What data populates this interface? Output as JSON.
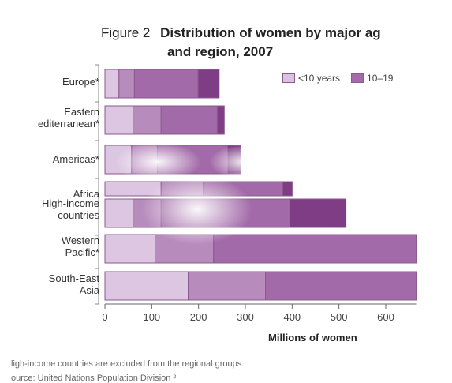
{
  "title": {
    "figure": "Figure 2",
    "line1": "Distribution of women by major ag",
    "line2": "and region, 2007"
  },
  "legend": [
    {
      "label": "<10 years",
      "color": "#d9c2df"
    },
    {
      "label": "10–19",
      "color": "#a56aaa"
    }
  ],
  "chart_data": {
    "type": "bar",
    "orientation": "horizontal",
    "stacked": true,
    "title": "Distribution of women by major ag and region, 2007",
    "xlabel": "Millions of women",
    "ylabel": "",
    "xlim": [
      0,
      665
    ],
    "xticks": [
      0,
      100,
      200,
      300,
      400,
      500,
      600
    ],
    "categories": [
      {
        "label": "Europe*",
        "lines": [
          "Europe*"
        ],
        "segments": [
          30,
          33,
          136,
          45
        ]
      },
      {
        "label": "Eastern Mediterranean*",
        "lines": [
          "Eastern",
          "editerranean*"
        ],
        "segments": [
          60,
          60,
          120,
          15
        ]
      },
      {
        "label": "Americas*",
        "lines": [
          "Americas*"
        ],
        "segments": [
          57,
          55,
          150,
          28
        ]
      },
      {
        "label": "Africa",
        "lines": [
          "Africa"
        ],
        "segments": [
          120,
          90,
          170,
          20
        ]
      },
      {
        "label": "High-income countries",
        "lines": [
          "High-income",
          "countries"
        ],
        "segments": [
          60,
          60,
          275,
          120
        ]
      },
      {
        "label": "Western Pacific*",
        "lines": [
          "Western",
          "Pacific*"
        ],
        "segments": [
          107,
          125,
          433
        ]
      },
      {
        "label": "South-East Asia",
        "lines": [
          "South-East",
          "Asia"
        ],
        "segments": [
          178,
          165,
          322
        ]
      }
    ],
    "segment_colors": [
      "#dcc6e1",
      "#b88bbd",
      "#a26aa8",
      "#7e3d84"
    ],
    "grid": false,
    "legend_position": "top-right"
  },
  "footnotes": [
    "ligh-income countries are excluded from the regional groups.",
    "ource: United Nations Population Division ²"
  ]
}
